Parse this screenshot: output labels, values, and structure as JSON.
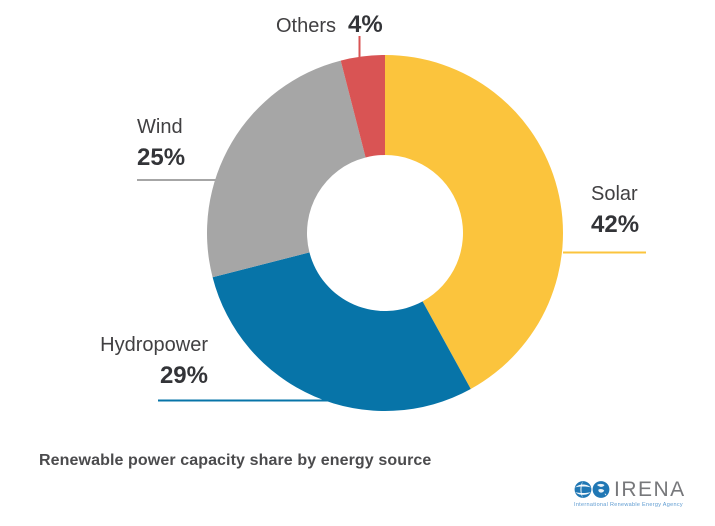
{
  "chart_data": {
    "type": "pie",
    "subtype": "donut",
    "title": "Renewable power capacity share by energy source",
    "unit": "%",
    "direction": "clockwise",
    "start_angle_deg": -90,
    "inner_radius_ratio": 0.44,
    "slices": [
      {
        "label": "Solar",
        "value": 42,
        "value_label": "42%",
        "color": "#FBC43D"
      },
      {
        "label": "Hydropower",
        "value": 29,
        "value_label": "29%",
        "color": "#0774A8"
      },
      {
        "label": "Wind",
        "value": 25,
        "value_label": "25%",
        "color": "#A6A6A6"
      },
      {
        "label": "Others",
        "value": 4,
        "value_label": "4%",
        "color": "#D95454"
      }
    ],
    "legend_position": "callout-labels"
  },
  "footer": {
    "title": "Renewable power capacity share by energy source"
  },
  "branding": {
    "logo_text": "IRENA",
    "tagline": "International Renewable Energy Agency",
    "logo_blue": "#2077B4"
  }
}
